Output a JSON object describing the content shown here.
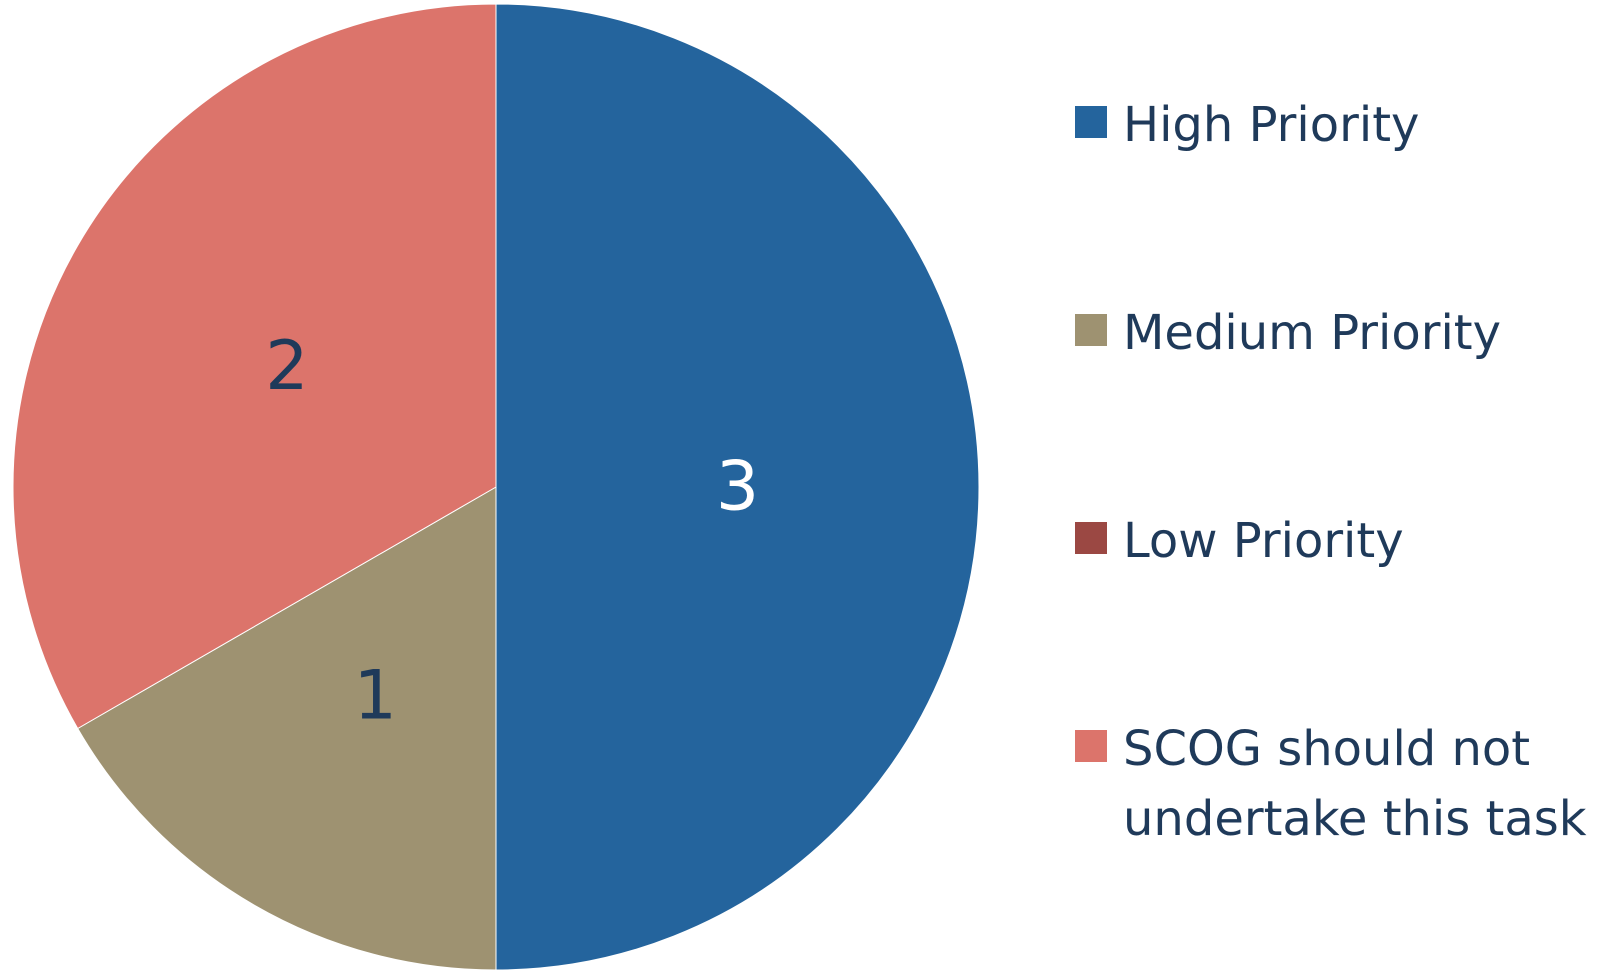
{
  "chart_data": {
    "type": "pie",
    "title": "",
    "slices": [
      {
        "name": "High Priority",
        "value": 3,
        "label": "3",
        "color": "#24649d",
        "label_color": "#ffffff"
      },
      {
        "name": "Medium Priority",
        "value": 1,
        "label": "1",
        "color": "#9e9271",
        "label_color": "#1f3a5a"
      },
      {
        "name": "Low Priority",
        "value": 0,
        "label": "",
        "color": "#9b4843",
        "label_color": "#1f3a5a"
      },
      {
        "name": "SCOG should not undertake this task",
        "value": 2,
        "label": "2",
        "color": "#dc746b",
        "label_color": "#1f3a5a"
      }
    ],
    "start_angle": "12 o'clock",
    "direction": "clockwise",
    "legend": {
      "position": "right",
      "entries": [
        "High Priority",
        "Medium Priority",
        "Low Priority",
        "SCOG should not undertake this task"
      ]
    }
  }
}
